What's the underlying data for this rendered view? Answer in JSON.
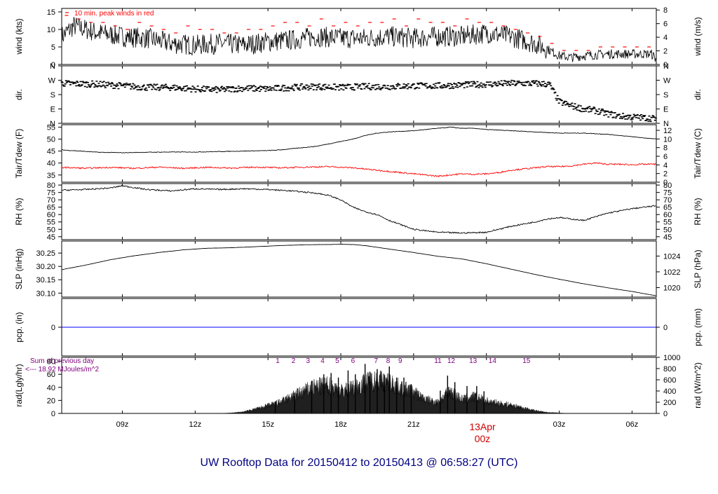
{
  "page": {
    "title": "UW Rooftop Data for 20150412  to  20150413 @ 06:58:27  (UTC)",
    "date_marker": "13Apr",
    "date_marker_sub": "00z"
  },
  "colors": {
    "frame": "#000000",
    "series": "#000000",
    "dewpoint": "#ff0000",
    "peak_wind": "#ff0000",
    "precip": "#0000ff",
    "title": "#000080",
    "date_marker": "#cc0000",
    "radiation_note": "#800080"
  },
  "x_axis": {
    "range_hours": [
      6.5,
      31.0
    ],
    "ticks": [
      {
        "h": 9,
        "label": "09z"
      },
      {
        "h": 12,
        "label": "12z"
      },
      {
        "h": 15,
        "label": "15z"
      },
      {
        "h": 18,
        "label": "18z"
      },
      {
        "h": 21,
        "label": "21z"
      },
      {
        "h": 24,
        "label": ""
      },
      {
        "h": 27,
        "label": "03z"
      },
      {
        "h": 30,
        "label": "06z"
      }
    ]
  },
  "chart_data": [
    {
      "id": "wind",
      "type": "line",
      "ylabel_left": "wind (kts)",
      "ylabel_right": "wind (m/s)",
      "note": "10 min. peak winds in red",
      "left_ylim": [
        0,
        16
      ],
      "left_ticks": [
        0,
        5,
        10,
        15
      ],
      "right_ylim": [
        0,
        8.23
      ],
      "right_ticks": [
        0,
        2,
        4,
        6,
        8
      ],
      "series": [
        {
          "x": [
            6.5,
            7.0,
            8.0,
            9.0,
            10.0,
            11.0,
            12.0,
            13.0,
            14.0,
            15.0,
            16.0,
            17.0,
            18.0,
            19.0,
            20.0,
            21.0,
            22.0,
            23.0,
            24.0,
            25.0,
            26.0,
            26.5,
            27.0,
            27.5,
            28.0,
            29.0,
            30.0,
            30.8,
            31.0
          ],
          "values": [
            8,
            11,
            9,
            8,
            7.5,
            6,
            5.5,
            6,
            5.5,
            6.5,
            7,
            8,
            7.5,
            7.5,
            8,
            7.5,
            8,
            8,
            9,
            8,
            6,
            4.5,
            2.5,
            2,
            2.5,
            3,
            3,
            3,
            1.5
          ]
        }
      ],
      "peak_x": [
        6.7,
        7.2,
        7.7,
        8.2,
        8.7,
        9.2,
        9.7,
        10.2,
        10.7,
        11.2,
        11.7,
        12.2,
        12.7,
        13.2,
        13.7,
        14.2,
        14.7,
        15.2,
        15.7,
        16.2,
        16.7,
        17.2,
        17.7,
        18.2,
        18.7,
        19.2,
        19.7,
        20.2,
        20.7,
        21.2,
        21.7,
        22.2,
        22.7,
        23.2,
        23.7,
        24.2,
        24.7,
        25.2,
        25.7,
        26.2,
        26.7,
        27.2,
        27.7,
        28.2,
        28.7,
        29.2,
        29.7,
        30.2,
        30.7
      ],
      "peak_values": [
        14,
        13,
        12,
        12,
        11,
        10,
        12,
        11,
        10,
        9,
        11,
        10,
        10,
        9,
        9,
        10,
        10,
        11,
        12,
        12,
        11,
        13,
        11,
        12,
        11,
        12,
        12,
        13,
        11,
        13,
        12,
        12,
        11,
        13,
        12,
        12,
        11,
        10,
        9,
        8,
        6,
        4,
        4,
        4,
        5,
        5,
        5,
        5,
        5
      ]
    },
    {
      "id": "dir",
      "type": "scatter",
      "ylabel_left": "dir.",
      "ylabel_right": "dir.",
      "ylim": [
        0,
        360
      ],
      "tick_values": [
        0,
        90,
        180,
        270,
        360
      ],
      "tick_labels": [
        "N",
        "E",
        "S",
        "W",
        "N"
      ],
      "series": [
        {
          "x": [
            6.5,
            8.0,
            9.0,
            10.0,
            11.0,
            12.0,
            13.0,
            14.0,
            15.0,
            16.0,
            17.0,
            18.0,
            19.0,
            20.0,
            21.0,
            22.0,
            23.0,
            24.0,
            25.0,
            26.0,
            26.6,
            27.0,
            27.5,
            28.0,
            28.5,
            29.0,
            29.5,
            30.0,
            30.5,
            31.0
          ],
          "values": [
            250,
            245,
            235,
            225,
            225,
            215,
            210,
            220,
            215,
            225,
            230,
            225,
            230,
            230,
            235,
            235,
            240,
            245,
            250,
            250,
            245,
            135,
            110,
            90,
            80,
            60,
            45,
            40,
            35,
            30
          ]
        }
      ]
    },
    {
      "id": "temp",
      "type": "line",
      "ylabel_left": "Tair/Tdew (F)",
      "ylabel_right": "Tair/Tdew (C)",
      "left_ylim": [
        32,
        56
      ],
      "left_ticks": [
        35,
        40,
        45,
        50,
        55
      ],
      "right_ylim": [
        0,
        13.3
      ],
      "right_ticks": [
        0,
        2,
        4,
        6,
        8,
        10,
        12
      ],
      "series": [
        {
          "name": "Tair",
          "x": [
            6.5,
            8.0,
            9.0,
            10.0,
            11.0,
            12.0,
            13.0,
            14.0,
            15.0,
            15.5,
            16.0,
            16.5,
            17.0,
            17.5,
            18.0,
            18.5,
            19.0,
            19.5,
            20.0,
            21.0,
            21.5,
            22.0,
            22.5,
            23.0,
            23.5,
            24.0,
            25.0,
            26.0,
            27.0,
            28.0,
            29.0,
            30.0,
            31.0
          ],
          "values": [
            45.5,
            44.5,
            44.3,
            44.5,
            44.6,
            44.6,
            44.8,
            45,
            45.2,
            45.5,
            46,
            46.5,
            47,
            48,
            49,
            50,
            51.5,
            52.5,
            53,
            53.5,
            54,
            54.5,
            55,
            54.5,
            54.5,
            54,
            53.5,
            53,
            52.5,
            52.5,
            52,
            51,
            50
          ]
        },
        {
          "name": "Tdew",
          "x": [
            6.5,
            7.5,
            8.5,
            9.5,
            10.5,
            11.5,
            12.5,
            13.5,
            14.5,
            15.5,
            16.5,
            17.5,
            18.5,
            19.0,
            19.5,
            20.0,
            20.5,
            21.0,
            21.5,
            22.0,
            22.5,
            23.0,
            23.5,
            24.0,
            24.5,
            25.0,
            25.5,
            26.0,
            26.5,
            27.0,
            27.5,
            28.0,
            28.5,
            29.0,
            29.5,
            30.0,
            30.5,
            31.0
          ],
          "values": [
            38.2,
            37.8,
            38.2,
            37.8,
            38.3,
            37.8,
            38.2,
            37.9,
            38.3,
            38.0,
            38.3,
            38.5,
            38.0,
            37.5,
            37,
            36.5,
            36,
            35.5,
            35,
            34.5,
            35,
            35.5,
            35.3,
            35.5,
            36,
            37,
            37.5,
            38,
            38.5,
            38.5,
            38.8,
            39.5,
            40,
            39.5,
            39.5,
            39.3,
            39.5,
            39.5
          ]
        }
      ]
    },
    {
      "id": "rh",
      "type": "line",
      "ylabel_left": "RH (%)",
      "ylabel_right": "RH (%)",
      "left_ylim": [
        43,
        81
      ],
      "left_ticks": [
        45,
        50,
        55,
        60,
        65,
        70,
        75,
        80
      ],
      "series": [
        {
          "x": [
            6.5,
            7.5,
            8.5,
            9.0,
            10.0,
            11.0,
            12.0,
            13.0,
            14.0,
            15.0,
            16.0,
            17.0,
            17.5,
            18.0,
            18.5,
            19.0,
            19.5,
            20.0,
            20.5,
            21.0,
            22.0,
            23.0,
            24.0,
            25.0,
            26.0,
            26.5,
            27.0,
            28.0,
            29.0,
            30.0,
            31.0
          ],
          "values": [
            76.5,
            77,
            78,
            79.5,
            77,
            76,
            77.5,
            77,
            77.5,
            77,
            76,
            74.5,
            73,
            70,
            65,
            62,
            60,
            56,
            53,
            50,
            48,
            47.5,
            48,
            52,
            55,
            57,
            58,
            56,
            61,
            64,
            66
          ]
        }
      ]
    },
    {
      "id": "slp",
      "type": "line",
      "ylabel_left": "SLP (inHg)",
      "ylabel_right": "SLP (hPa)",
      "left_ylim": [
        30.085,
        30.295
      ],
      "left_ticks": [
        30.1,
        30.15,
        30.2,
        30.25
      ],
      "left_tick_labels": [
        "30.10",
        "30.15",
        "30.20",
        "30.25"
      ],
      "right_ylim": [
        1018.8,
        1025.9
      ],
      "right_ticks": [
        1020,
        1022,
        1024
      ],
      "series": [
        {
          "x": [
            6.5,
            7.5,
            8.5,
            9.5,
            10.5,
            11.5,
            12.5,
            13.5,
            14.5,
            15.5,
            16.5,
            17.5,
            18.0,
            18.5,
            19.0,
            20.0,
            21.0,
            22.0,
            23.0,
            24.0,
            25.0,
            26.0,
            27.0,
            28.0,
            29.0,
            30.0,
            31.0
          ],
          "values": [
            30.188,
            30.205,
            30.225,
            30.24,
            30.252,
            30.262,
            30.268,
            30.27,
            30.274,
            30.278,
            30.281,
            30.282,
            30.283,
            30.282,
            30.278,
            30.265,
            30.252,
            30.238,
            30.228,
            30.21,
            30.19,
            30.17,
            30.152,
            30.135,
            30.12,
            30.106,
            30.09
          ]
        }
      ]
    },
    {
      "id": "pcp",
      "type": "line",
      "ylabel_left": "pcp. (in)",
      "ylabel_right": "pcp. (mm)",
      "left_ylim": [
        -1,
        1
      ],
      "left_ticks": [
        0
      ],
      "right_ticks": [
        0
      ],
      "series": [
        {
          "x": [
            6.5,
            31.0
          ],
          "values": [
            0,
            0
          ]
        }
      ]
    },
    {
      "id": "rad",
      "type": "area",
      "ylabel_left": "rad(Lgly/hr)",
      "ylabel_right": "rad (W/m^2)",
      "note_line1": "Sum of previous day",
      "note_line2": "<--- 18.92 MJoules/m^2",
      "left_ylim": [
        0,
        86
      ],
      "left_ticks": [
        0,
        20,
        40,
        60,
        80
      ],
      "right_ylim": [
        0,
        1000
      ],
      "right_ticks": [
        0,
        200,
        400,
        600,
        800,
        1000
      ],
      "sun_elev_labels": [
        "1",
        "2",
        "3",
        "4",
        "5",
        "6",
        "7",
        "8",
        "9",
        "11",
        "12",
        "13",
        "14",
        "15"
      ],
      "sun_elev_x": [
        15.4,
        16.05,
        16.65,
        17.25,
        17.85,
        18.5,
        19.45,
        19.95,
        20.45,
        22.0,
        22.55,
        23.45,
        24.25,
        25.65
      ],
      "series": [
        {
          "x": [
            13.0,
            13.5,
            14.0,
            14.5,
            15.0,
            15.5,
            16.0,
            16.5,
            17.0,
            17.5,
            18.0,
            18.5,
            19.0,
            19.5,
            20.0,
            20.5,
            21.0,
            21.5,
            22.0,
            22.5,
            23.0,
            23.5,
            24.0,
            24.5,
            25.0,
            25.5,
            26.0,
            26.5,
            27.0,
            27.3
          ],
          "values": [
            0,
            1,
            3,
            8,
            14,
            20,
            30,
            40,
            48,
            50,
            40,
            45,
            55,
            60,
            55,
            45,
            38,
            25,
            20,
            40,
            25,
            30,
            22,
            18,
            15,
            10,
            5,
            2,
            1,
            0
          ],
          "spikes_x": [
            15.3,
            16.1,
            16.8,
            17.3,
            17.6,
            17.9,
            18.3,
            18.6,
            19.0,
            19.2,
            19.5,
            19.8,
            20.0,
            20.3,
            20.6,
            20.9,
            22.1,
            22.4,
            22.7,
            23.2,
            23.6,
            23.9
          ],
          "spikes_values": [
            18,
            32,
            50,
            60,
            62,
            55,
            66,
            60,
            76,
            64,
            68,
            58,
            72,
            55,
            55,
            45,
            35,
            58,
            48,
            42,
            42,
            34
          ]
        }
      ]
    }
  ]
}
